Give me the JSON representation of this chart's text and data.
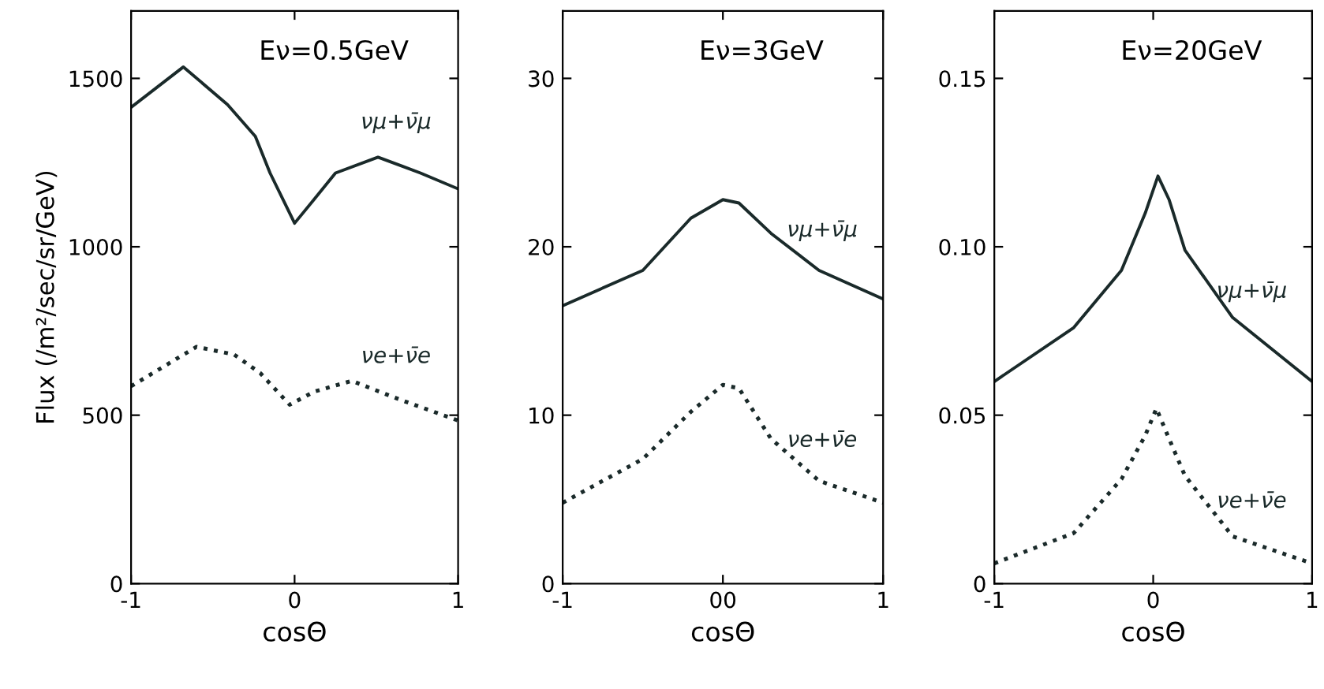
{
  "chart_data": [
    {
      "type": "line",
      "title": "Eν=0.5GeV",
      "xlabel": "cosΘ",
      "ylabel": "Flux (/m²/sec/sr/GeV)",
      "xlim": [
        -1,
        1
      ],
      "xticks": [
        -1,
        0,
        1
      ],
      "ylim": [
        0,
        1700
      ],
      "yticks": [
        0,
        500,
        1000,
        1500
      ],
      "grid": false,
      "legend": false,
      "marker": "none",
      "series": [
        {
          "name": "νμ+ν̄μ",
          "color": "#1a2a2a",
          "line_style": "solid",
          "x": [
            -1,
            -0.68,
            -0.41,
            -0.24,
            -0.15,
            0.0,
            0.12,
            0.25,
            0.51,
            0.77,
            1
          ],
          "values": [
            1414,
            1534,
            1422,
            1328,
            1219,
            1070,
            1141,
            1219,
            1266,
            1219,
            1172
          ]
        },
        {
          "name": "νe+ν̄e",
          "color": "#1a2a2a",
          "line_style": "dotted",
          "x": [
            -1,
            -0.6,
            -0.37,
            -0.21,
            -0.03,
            0.12,
            0.35,
            0.64,
            1
          ],
          "values": [
            586,
            703,
            680,
            625,
            531,
            570,
            602,
            547,
            484
          ]
        }
      ]
    },
    {
      "type": "line",
      "title": "Eν=3GeV",
      "xlabel": "cosΘ",
      "xlim": [
        -1,
        1
      ],
      "xticks": [
        -1,
        {
          "value": 0,
          "label": "00"
        },
        1
      ],
      "ylim": [
        0,
        34
      ],
      "yticks": [
        0,
        10,
        20,
        30
      ],
      "grid": false,
      "legend": false,
      "marker": "none",
      "series": [
        {
          "name": "νμ+ν̄μ",
          "color": "#1a2a2a",
          "line_style": "solid",
          "x": [
            -1,
            -0.5,
            -0.2,
            0,
            0.1,
            0.3,
            0.6,
            1
          ],
          "values": [
            16.5,
            18.6,
            21.7,
            22.8,
            22.6,
            20.8,
            18.6,
            16.9
          ]
        },
        {
          "name": "νe+ν̄e",
          "color": "#1a2a2a",
          "line_style": "dotted",
          "x": [
            -1,
            -0.5,
            -0.2,
            0,
            0.1,
            0.3,
            0.6,
            1
          ],
          "values": [
            4.8,
            7.4,
            10.2,
            11.8,
            11.6,
            8.6,
            6.1,
            4.8
          ]
        }
      ]
    },
    {
      "type": "line",
      "title": "Eν=20GeV",
      "xlabel": "cosΘ",
      "xlim": [
        -1,
        1
      ],
      "xticks": [
        -1,
        0,
        1
      ],
      "ylim": [
        0,
        0.17
      ],
      "yticks": [
        0,
        0.05,
        {
          "value": 0.1,
          "label": "0.10"
        },
        0.15
      ],
      "grid": false,
      "legend": false,
      "marker": "none",
      "series": [
        {
          "name": "νμ+ν̄μ",
          "color": "#1a2a2a",
          "line_style": "solid",
          "x": [
            -1,
            -0.5,
            -0.2,
            -0.05,
            0.03,
            0.1,
            0.2,
            0.5,
            1
          ],
          "values": [
            0.06,
            0.076,
            0.093,
            0.11,
            0.121,
            0.114,
            0.099,
            0.079,
            0.06
          ]
        },
        {
          "name": "νe+ν̄e",
          "color": "#1a2a2a",
          "line_style": "dotted",
          "x": [
            -1,
            -0.5,
            -0.2,
            -0.05,
            0.02,
            0.1,
            0.2,
            0.5,
            1
          ],
          "values": [
            0.006,
            0.015,
            0.031,
            0.044,
            0.052,
            0.043,
            0.032,
            0.014,
            0.006
          ]
        }
      ]
    }
  ]
}
